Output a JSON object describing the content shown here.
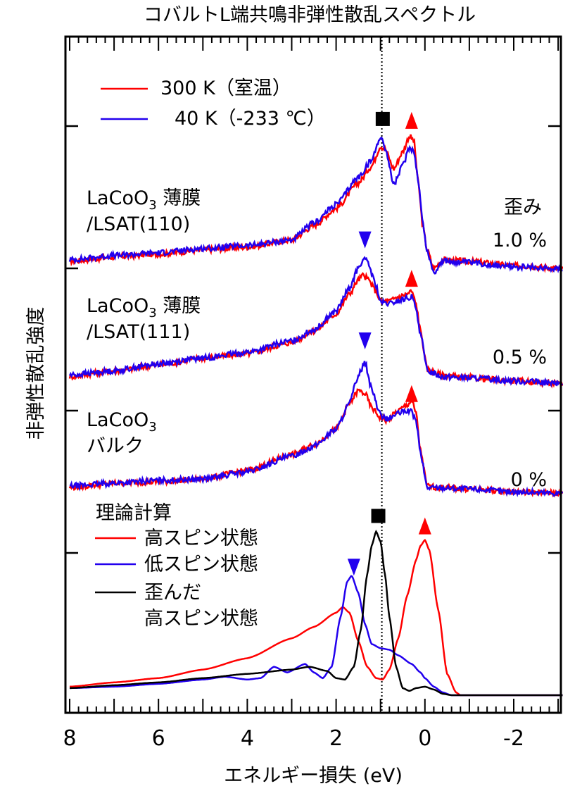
{
  "chart_data": {
    "type": "line",
    "title": "コバルトL端共鳴非弾性散乱スペクトル",
    "xlabel": "エネルギー損失 (eV)",
    "ylabel": "非弾性散乱強度",
    "xlim": [
      8,
      -3.1
    ],
    "x_reversed": true,
    "ylim": [
      -0.12,
      4.63
    ],
    "x_ticks": [
      8,
      6,
      4,
      2,
      0,
      -2
    ],
    "x_tick_labels": [
      "8",
      "6",
      "4",
      "2",
      "0",
      "-2"
    ],
    "y_ticks": [
      1,
      2,
      3,
      4
    ],
    "y_tick_labels_shown": false,
    "grid": false,
    "reference_line": {
      "x": 0.97,
      "style": "dotted",
      "color": "#000000"
    },
    "colors": {
      "red": "#ff0000",
      "blue": "#2200ee",
      "black": "#000000"
    },
    "legend_experiment": [
      {
        "label": "300 K（室温）",
        "color": "#ff0000"
      },
      {
        "label": "40 K（-233 ℃）",
        "color": "#2200ee"
      }
    ],
    "legend_theory_title": "理論計算",
    "legend_theory": [
      {
        "label": "高スピン状態",
        "color": "#ff0000"
      },
      {
        "label": "低スピン状態",
        "color": "#2200ee"
      },
      {
        "label": "歪んだ",
        "label2": "高スピン状態",
        "color": "#000000"
      }
    ],
    "panels": [
      {
        "sample_line1": "LaCoO",
        "sample_sub": "3",
        "sample_suffix": " 薄膜",
        "sample_line2": "/LSAT(110)",
        "strain_title": "歪み",
        "strain": "1.0 %",
        "series": [
          {
            "name": "300 K",
            "color": "#ff0000",
            "x": [
              8,
              7,
              6,
              5,
              4,
              3,
              2.5,
              2,
              1.5,
              1.2,
              1.0,
              0.9,
              0.7,
              0.5,
              0.35,
              0.25,
              0.15,
              0.05,
              -0.05,
              -0.2,
              -0.4,
              -1,
              -2,
              -3.1
            ],
            "y": [
              3.05,
              3.08,
              3.1,
              3.13,
              3.15,
              3.2,
              3.3,
              3.42,
              3.6,
              3.72,
              3.86,
              3.84,
              3.7,
              3.82,
              3.93,
              3.9,
              3.6,
              3.3,
              3.13,
              3.0,
              3.06,
              3.05,
              3.02,
              3.0
            ]
          },
          {
            "name": "40 K",
            "color": "#2200ee",
            "x": [
              8,
              7,
              6,
              5,
              4,
              3,
              2.5,
              2,
              1.5,
              1.2,
              1.0,
              0.9,
              0.7,
              0.5,
              0.35,
              0.25,
              0.15,
              0.05,
              -0.05,
              -0.2,
              -0.4,
              -1,
              -2,
              -3.1
            ],
            "y": [
              3.06,
              3.09,
              3.11,
              3.14,
              3.16,
              3.2,
              3.32,
              3.45,
              3.64,
              3.76,
              3.93,
              3.85,
              3.59,
              3.72,
              3.85,
              3.83,
              3.62,
              3.32,
              3.12,
              2.97,
              3.05,
              3.04,
              3.01,
              3.0
            ]
          }
        ],
        "markers": [
          {
            "shape": "square",
            "x": 0.95,
            "y": 4.05,
            "color": "#000000"
          },
          {
            "shape": "triangle-up",
            "x": 0.3,
            "y": 4.04,
            "color": "#ff0000"
          }
        ]
      },
      {
        "sample_line1": "LaCoO",
        "sample_sub": "3",
        "sample_suffix": " 薄膜",
        "sample_line2": "/LSAT(111)",
        "strain": "0.5 %",
        "series": [
          {
            "name": "300 K",
            "color": "#ff0000",
            "x": [
              8,
              7,
              6,
              5,
              4,
              3,
              2.5,
              2,
              1.7,
              1.5,
              1.4,
              1.3,
              1.1,
              1.0,
              0.8,
              0.6,
              0.4,
              0.3,
              0.2,
              0.1,
              -0.05,
              -0.4,
              -1,
              -2,
              -3.1
            ],
            "y": [
              2.24,
              2.28,
              2.32,
              2.37,
              2.4,
              2.48,
              2.56,
              2.68,
              2.82,
              2.92,
              2.95,
              2.93,
              2.84,
              2.77,
              2.77,
              2.8,
              2.82,
              2.84,
              2.75,
              2.56,
              2.29,
              2.25,
              2.23,
              2.21,
              2.19
            ]
          },
          {
            "name": "40 K",
            "color": "#2200ee",
            "x": [
              8,
              7,
              6,
              5,
              4,
              3,
              2.5,
              2,
              1.7,
              1.5,
              1.4,
              1.3,
              1.1,
              1.0,
              0.8,
              0.6,
              0.4,
              0.3,
              0.2,
              0.1,
              -0.05,
              -0.4,
              -1,
              -2,
              -3.1
            ],
            "y": [
              2.25,
              2.28,
              2.33,
              2.37,
              2.41,
              2.49,
              2.57,
              2.7,
              2.86,
              3.0,
              3.06,
              3.05,
              2.88,
              2.76,
              2.75,
              2.77,
              2.79,
              2.8,
              2.72,
              2.54,
              2.28,
              2.24,
              2.23,
              2.21,
              2.19
            ]
          }
        ],
        "markers": [
          {
            "shape": "triangle-down",
            "x": 1.35,
            "y": 3.2,
            "color": "#2200ee"
          },
          {
            "shape": "triangle-up",
            "x": 0.3,
            "y": 2.93,
            "color": "#ff0000"
          }
        ]
      },
      {
        "sample_line1": "LaCoO",
        "sample_sub": "3",
        "sample_suffix": "",
        "sample_line2": "バルク",
        "strain": "0 %",
        "series": [
          {
            "name": "300 K",
            "color": "#ff0000",
            "x": [
              8,
              7,
              6,
              5,
              4,
              3,
              2.5,
              2,
              1.7,
              1.5,
              1.35,
              1.2,
              1.0,
              0.85,
              0.6,
              0.4,
              0.3,
              0.2,
              0.1,
              -0.05,
              -0.3,
              -1,
              -2,
              -3.1
            ],
            "y": [
              1.46,
              1.49,
              1.5,
              1.52,
              1.58,
              1.69,
              1.76,
              1.87,
              2.05,
              2.14,
              2.12,
              2.02,
              1.95,
              1.93,
              2.0,
              2.04,
              2.07,
              1.98,
              1.72,
              1.47,
              1.46,
              1.45,
              1.43,
              1.42
            ]
          },
          {
            "name": "40 K",
            "color": "#2200ee",
            "x": [
              8,
              7,
              6,
              5,
              4,
              3,
              2.5,
              2,
              1.7,
              1.5,
              1.35,
              1.2,
              1.0,
              0.85,
              0.6,
              0.4,
              0.3,
              0.2,
              0.1,
              -0.05,
              -0.3,
              -1,
              -2,
              -3.1
            ],
            "y": [
              1.47,
              1.49,
              1.51,
              1.52,
              1.57,
              1.68,
              1.75,
              1.87,
              2.05,
              2.25,
              2.34,
              2.15,
              1.97,
              1.94,
              1.98,
              2.0,
              1.99,
              1.93,
              1.7,
              1.46,
              1.46,
              1.45,
              1.43,
              1.42
            ]
          }
        ],
        "markers": [
          {
            "shape": "triangle-down",
            "x": 1.35,
            "y": 2.49,
            "color": "#2200ee"
          },
          {
            "shape": "triangle-up",
            "x": 0.3,
            "y": 2.12,
            "color": "#ff0000"
          }
        ]
      }
    ],
    "theory": {
      "series": [
        {
          "name": "高スピン状態",
          "color": "#ff0000",
          "x": [
            8,
            7,
            6,
            5,
            4,
            3,
            2.5,
            2,
            1.85,
            1.7,
            1.5,
            1.3,
            1.1,
            0.95,
            0.8,
            0.6,
            0.4,
            0.2,
            0.1,
            0,
            -0.1,
            -0.3,
            -0.5,
            -0.7,
            -0.8,
            -3.1
          ],
          "y": [
            0.06,
            0.09,
            0.12,
            0.18,
            0.26,
            0.4,
            0.48,
            0.58,
            0.62,
            0.58,
            0.38,
            0.2,
            0.12,
            0.11,
            0.18,
            0.4,
            0.7,
            0.95,
            1.05,
            1.09,
            1.02,
            0.6,
            0.15,
            0.02,
            0,
            0
          ]
        },
        {
          "name": "低スピン状態",
          "color": "#2200ee",
          "x": [
            8,
            7,
            6,
            5,
            4.5,
            4,
            3.7,
            3.4,
            3.1,
            2.7,
            2.5,
            2.3,
            2.1,
            1.9,
            1.75,
            1.65,
            1.5,
            1.35,
            1.2,
            1.0,
            0.8,
            0.6,
            0.3,
            0.1,
            0,
            -0.2,
            -0.4,
            -0.6,
            -3.1
          ],
          "y": [
            0.05,
            0.06,
            0.08,
            0.11,
            0.13,
            0.11,
            0.12,
            0.2,
            0.16,
            0.22,
            0.16,
            0.12,
            0.2,
            0.55,
            0.8,
            0.84,
            0.72,
            0.5,
            0.36,
            0.33,
            0.32,
            0.28,
            0.22,
            0.16,
            0.12,
            0.06,
            0.02,
            0,
            0
          ]
        },
        {
          "name": "歪んだ高スピン状態",
          "color": "#000000",
          "x": [
            8,
            7,
            6,
            5,
            4,
            3,
            2.6,
            2.2,
            2.0,
            1.8,
            1.6,
            1.45,
            1.3,
            1.2,
            1.1,
            1.0,
            0.9,
            0.8,
            0.65,
            0.5,
            0.35,
            0.2,
            0,
            -0.2,
            -0.4,
            -0.6,
            -3.1
          ],
          "y": [
            0.05,
            0.07,
            0.09,
            0.12,
            0.15,
            0.18,
            0.2,
            0.17,
            0.12,
            0.11,
            0.2,
            0.45,
            0.85,
            1.05,
            1.15,
            1.08,
            0.85,
            0.55,
            0.2,
            0.05,
            0.03,
            0.05,
            0.06,
            0.04,
            0.01,
            0,
            0
          ]
        }
      ],
      "markers": [
        {
          "shape": "square",
          "x": 1.05,
          "y": 1.26,
          "color": "#000000"
        },
        {
          "shape": "triangle-up",
          "x": 0,
          "y": 1.19,
          "color": "#ff0000"
        },
        {
          "shape": "triangle-down",
          "x": 1.6,
          "y": 0.9,
          "color": "#2200ee"
        }
      ]
    }
  }
}
